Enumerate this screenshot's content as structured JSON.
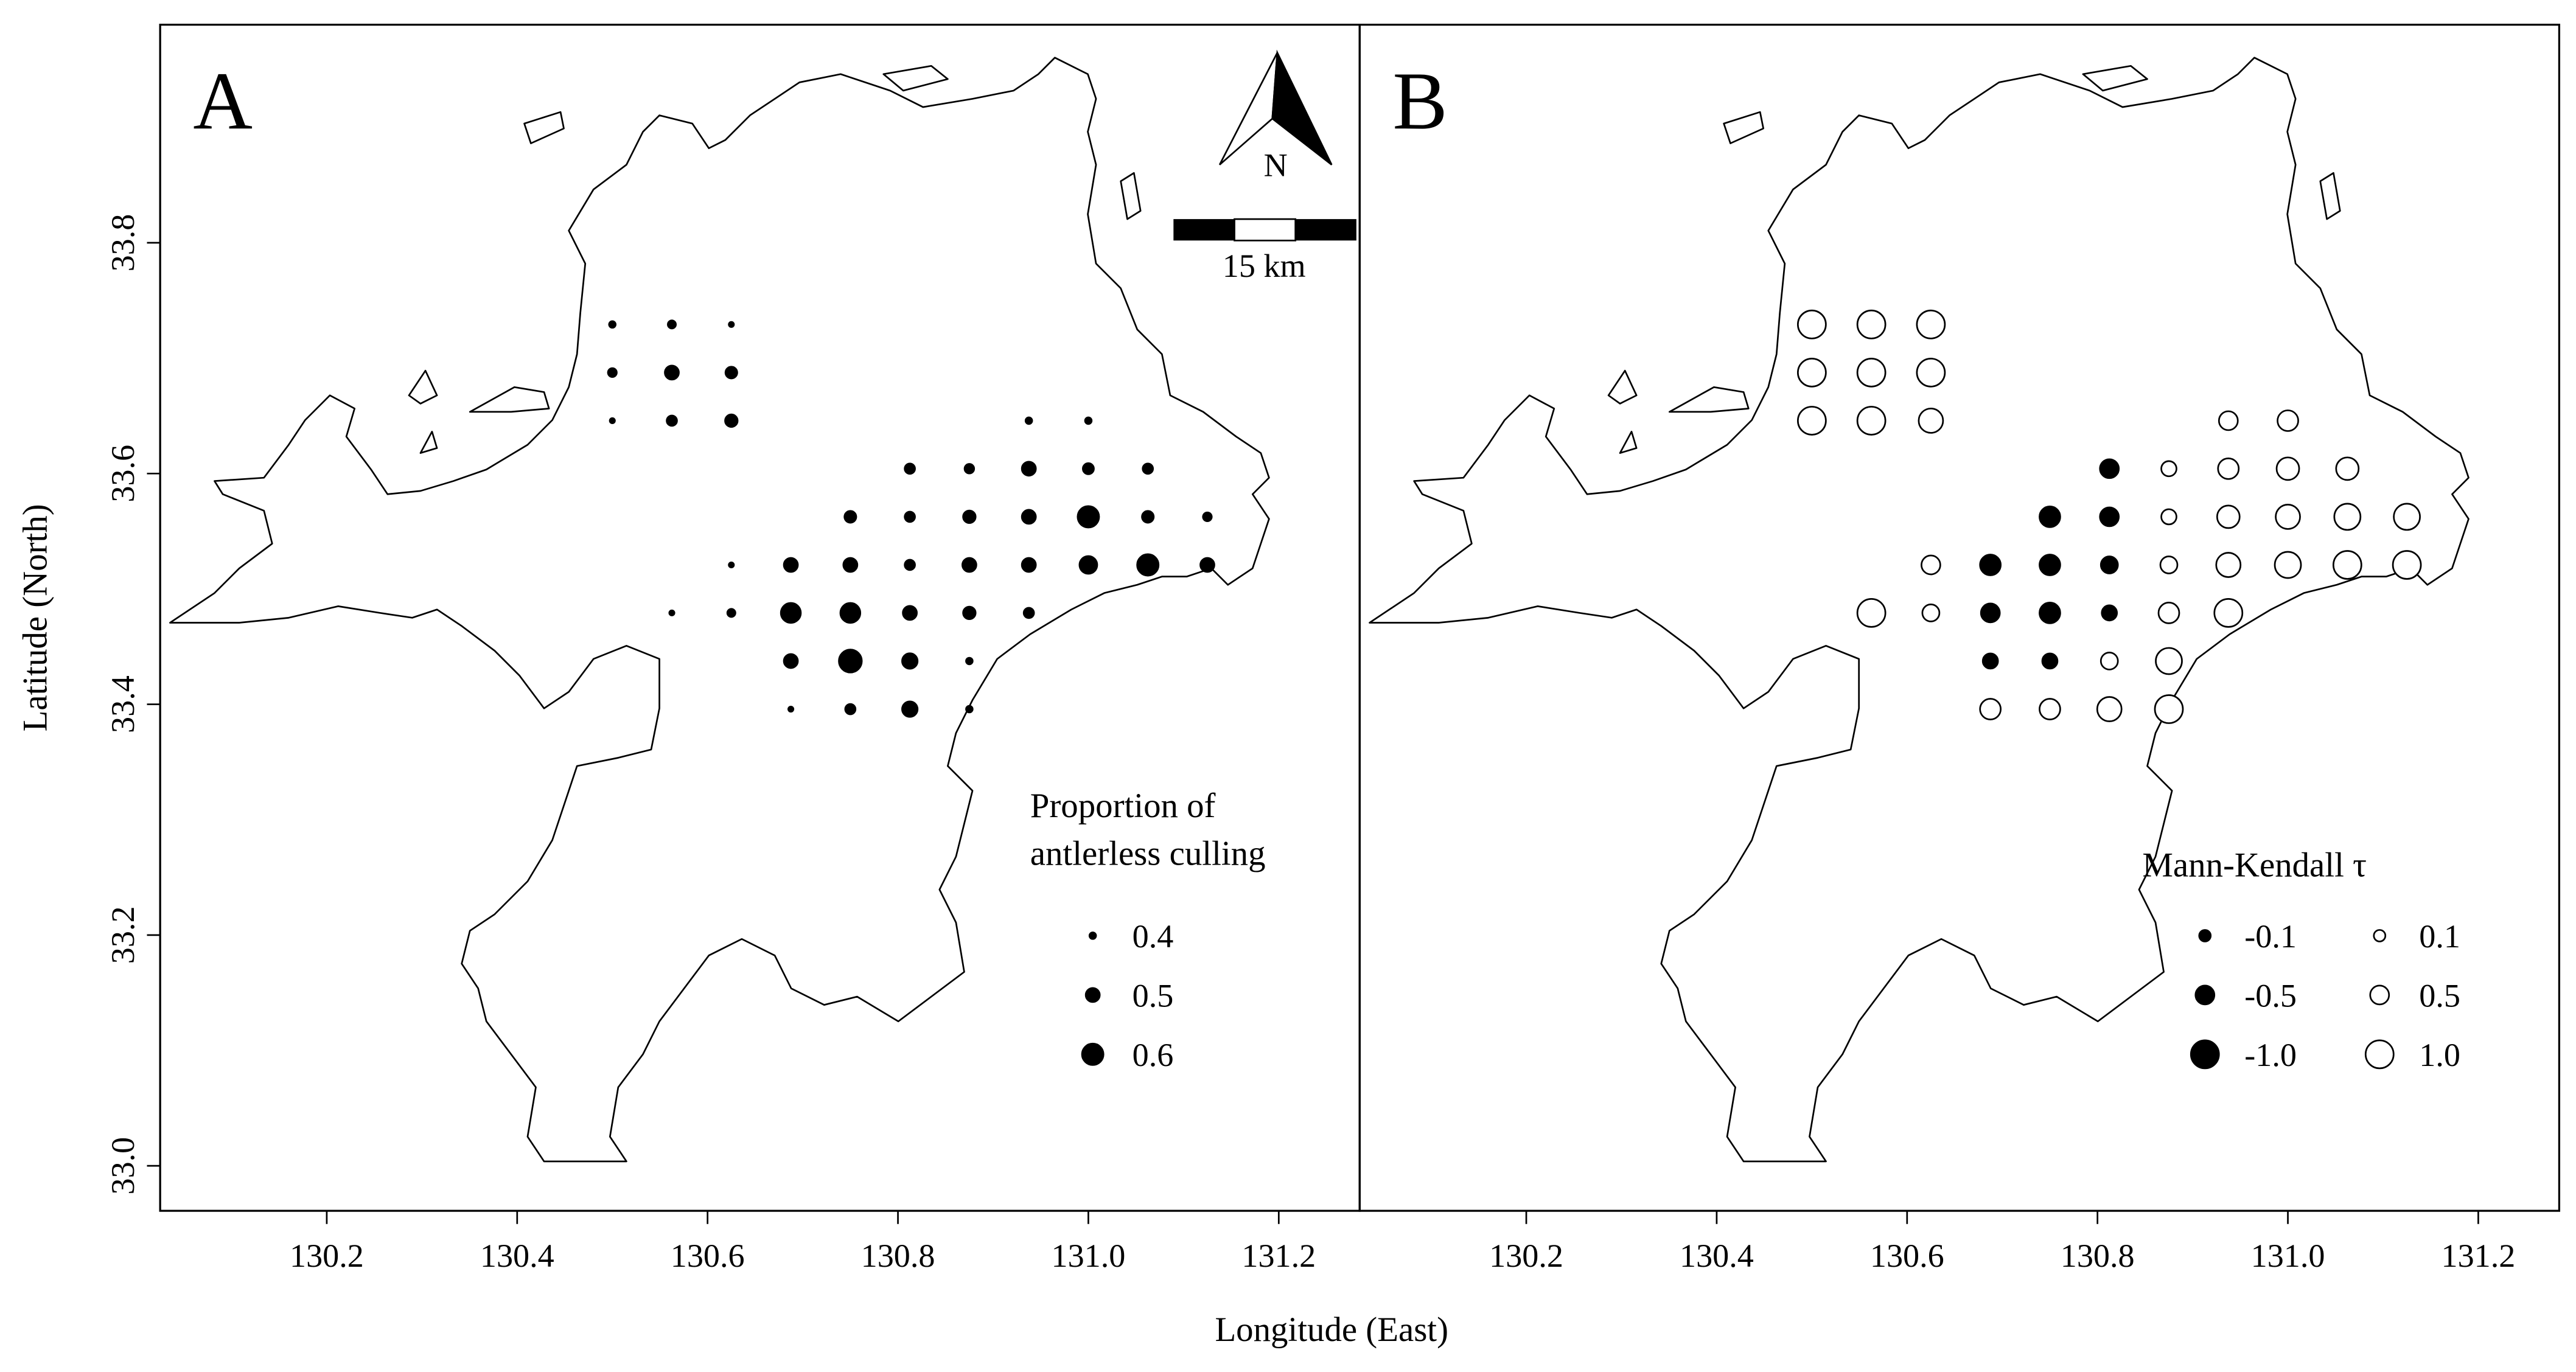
{
  "figure": {
    "xlabel": "Longitude (East)",
    "ylabel": "Latitude (North)"
  },
  "chart_data": [
    {
      "type": "scatter",
      "panel_label": "A",
      "north_label": "N",
      "scale_label": "15 km",
      "xlim": [
        130.025,
        131.285
      ],
      "ylim": [
        32.961,
        33.989
      ],
      "xticks": [
        130.2,
        130.4,
        130.6,
        130.8,
        {
          "value": 131,
          "label": "131.0"
        },
        131.2
      ],
      "yticks": [
        {
          "value": 33,
          "label": "33.0"
        },
        33.2,
        33.4,
        33.6,
        33.8
      ],
      "x": [
        130.5,
        130.5625,
        130.625,
        130.5,
        130.5625,
        130.625,
        130.5,
        130.5625,
        130.625,
        130.9375,
        131,
        130.8125,
        130.875,
        130.9375,
        131,
        131.0625,
        130.75,
        130.8125,
        130.875,
        130.9375,
        131,
        131.0625,
        131.125,
        130.625,
        130.6875,
        130.75,
        130.8125,
        130.875,
        130.9375,
        131,
        131.0625,
        131.125,
        130.5625,
        130.625,
        130.6875,
        130.75,
        130.8125,
        130.875,
        130.9375,
        130.6875,
        130.75,
        130.8125,
        130.875,
        130.6875,
        130.75,
        130.8125,
        130.875
      ],
      "y": [
        33.7292,
        33.7292,
        33.7292,
        33.6875,
        33.6875,
        33.6875,
        33.6458,
        33.6458,
        33.6458,
        33.6458,
        33.6458,
        33.6042,
        33.6042,
        33.6042,
        33.6042,
        33.6042,
        33.5625,
        33.5625,
        33.5625,
        33.5625,
        33.5625,
        33.5625,
        33.5625,
        33.5208,
        33.5208,
        33.5208,
        33.5208,
        33.5208,
        33.5208,
        33.5208,
        33.5208,
        33.5208,
        33.4792,
        33.4792,
        33.4792,
        33.4792,
        33.4792,
        33.4792,
        33.4792,
        33.4375,
        33.4375,
        33.4375,
        33.4375,
        33.3958,
        33.3958,
        33.3958,
        33.3958
      ],
      "sizes": [
        0.4,
        0.42,
        0.38,
        0.43,
        0.5,
        0.47,
        0.38,
        0.45,
        0.48,
        0.4,
        0.4,
        0.45,
        0.44,
        0.5,
        0.46,
        0.45,
        0.47,
        0.45,
        0.48,
        0.5,
        0.6,
        0.47,
        0.43,
        0.38,
        0.5,
        0.5,
        0.45,
        0.5,
        0.5,
        0.55,
        0.6,
        0.5,
        0.38,
        0.42,
        0.58,
        0.58,
        0.5,
        0.48,
        0.45,
        0.5,
        0.62,
        0.52,
        0.4,
        0.38,
        0.45,
        0.52,
        0.4
      ],
      "legend": {
        "title": [
          "Proportion of",
          "antlerless culling"
        ],
        "entries": [
          [
            0.4,
            0.5,
            0.6
          ]
        ]
      }
    },
    {
      "type": "scatter",
      "panel_label": "B",
      "xlim": [
        130.025,
        131.285
      ],
      "ylim": [
        32.961,
        33.989
      ],
      "xticks": [
        130.2,
        130.4,
        130.6,
        130.8,
        {
          "value": 131,
          "label": "131.0"
        },
        131.2
      ],
      "x": [
        130.5,
        130.5625,
        130.625,
        130.5,
        130.5625,
        130.625,
        130.5,
        130.5625,
        130.625,
        130.9375,
        131,
        130.8125,
        130.875,
        130.9375,
        131,
        131.0625,
        130.75,
        130.8125,
        130.875,
        130.9375,
        131,
        131.0625,
        131.125,
        130.625,
        130.6875,
        130.75,
        130.8125,
        130.875,
        130.9375,
        131,
        131.0625,
        131.125,
        130.5625,
        130.625,
        130.6875,
        130.75,
        130.8125,
        130.875,
        130.9375,
        130.6875,
        130.75,
        130.8125,
        130.875,
        130.6875,
        130.75,
        130.8125,
        130.875
      ],
      "y": [
        33.7292,
        33.7292,
        33.7292,
        33.6875,
        33.6875,
        33.6875,
        33.6458,
        33.6458,
        33.6458,
        33.6458,
        33.6458,
        33.6042,
        33.6042,
        33.6042,
        33.6042,
        33.6042,
        33.5625,
        33.5625,
        33.5625,
        33.5625,
        33.5625,
        33.5625,
        33.5625,
        33.5208,
        33.5208,
        33.5208,
        33.5208,
        33.5208,
        33.5208,
        33.5208,
        33.5208,
        33.5208,
        33.4792,
        33.4792,
        33.4792,
        33.4792,
        33.4792,
        33.4792,
        33.4792,
        33.4375,
        33.4375,
        33.4375,
        33.4375,
        33.3958,
        33.3958,
        33.3958,
        33.3958
      ],
      "sizes": [
        1,
        1,
        1,
        1,
        1,
        1,
        1,
        1,
        0.8,
        0.5,
        0.6,
        -0.5,
        0.3,
        0.6,
        0.7,
        0.7,
        -0.6,
        -0.5,
        0.3,
        0.7,
        0.8,
        0.9,
        0.9,
        0.5,
        -0.6,
        -0.6,
        -0.4,
        0.4,
        0.8,
        0.9,
        1,
        1,
        1,
        0.4,
        -0.5,
        -0.6,
        -0.3,
        0.6,
        1,
        -0.3,
        -0.3,
        0.4,
        0.9,
        0.6,
        0.6,
        0.8,
        1
      ],
      "legend": {
        "title": [
          "Mann-Kendall τ"
        ],
        "entries": [
          [
            -0.1,
            -0.5,
            {
              "value": -1,
              "label": "-1.0"
            }
          ],
          [
            0.1,
            0.5,
            {
              "value": 1,
              "label": "1.0"
            }
          ]
        ]
      }
    }
  ]
}
